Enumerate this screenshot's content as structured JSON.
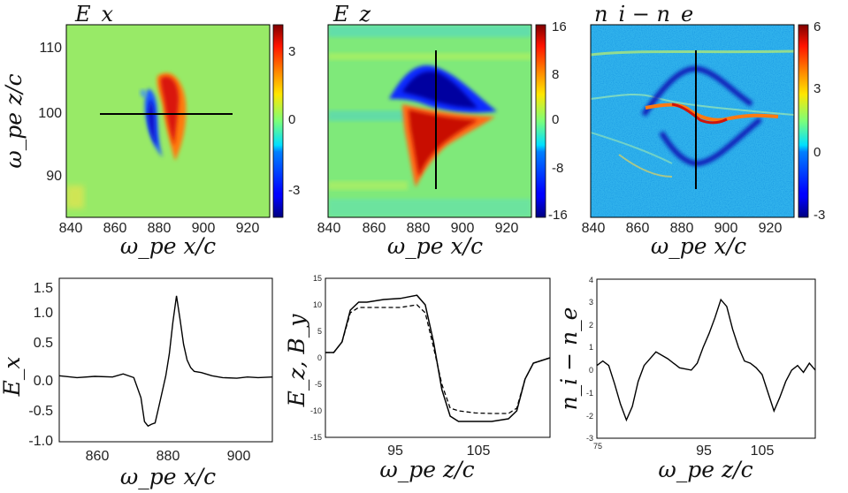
{
  "chart_data": [
    {
      "type": "heatmap",
      "title": "E_x",
      "xlabel": "ω_pe x/c",
      "ylabel": "ω_pe z/c",
      "xlim": [
        840,
        932
      ],
      "ylim": [
        84,
        113
      ],
      "xticks": [
        840,
        860,
        880,
        900,
        920
      ],
      "yticks": [
        90,
        100,
        110
      ],
      "colorbar": {
        "range": [
          -4,
          4
        ],
        "ticks": [
          3,
          0,
          -3
        ]
      },
      "line": {
        "orientation": "horizontal",
        "z": 99.5,
        "x_from": 856,
        "x_to": 916
      },
      "features": [
        {
          "name": "positive lobe",
          "x": 886,
          "z": 99.5,
          "value": 3.5
        },
        {
          "name": "negative lobe",
          "x": 876,
          "z": 98.0,
          "value": -3.5
        }
      ]
    },
    {
      "type": "heatmap",
      "title": "E_z",
      "xlabel": "ω_pe x/c",
      "ylabel": "",
      "xlim": [
        840,
        932
      ],
      "ylim": [
        84,
        113
      ],
      "xticks": [
        840,
        860,
        880,
        900,
        920
      ],
      "colorbar": {
        "range": [
          -16,
          16
        ],
        "ticks": [
          16,
          8,
          0,
          -8,
          -16
        ]
      },
      "line": {
        "orientation": "vertical",
        "x": 888,
        "z_from": 88,
        "z_to": 109
      },
      "features": [
        {
          "name": "negative lobe",
          "x": 893,
          "z": 103,
          "value": -15
        },
        {
          "name": "positive lobe",
          "x": 893,
          "z": 95,
          "value": 14
        }
      ]
    },
    {
      "type": "heatmap",
      "title": "n_i − n_e",
      "xlabel": "ω_pe x/c",
      "ylabel": "",
      "xlim": [
        840,
        932
      ],
      "ylim": [
        84,
        113
      ],
      "xticks": [
        840,
        860,
        880,
        900,
        920
      ],
      "colorbar": {
        "range": [
          -3,
          6
        ],
        "ticks": [
          6,
          3,
          0,
          -3
        ]
      },
      "line": {
        "orientation": "vertical",
        "x": 888,
        "z_from": 88,
        "z_to": 109
      },
      "features": [
        {
          "name": "density spike",
          "x": 895,
          "z": 99,
          "value": 5
        },
        {
          "name": "depletion ring",
          "x": 880,
          "z": 104,
          "value": -3
        }
      ]
    },
    {
      "type": "line",
      "xlabel": "ω_pe x/c",
      "ylabel": "E_x",
      "xlim": [
        850,
        910
      ],
      "ylim": [
        -1.0,
        1.6
      ],
      "xticks": [
        860,
        880,
        900
      ],
      "yticks": [
        "1.5",
        "1.0",
        "0.5",
        "0.0",
        "-0.5",
        "-1.0"
      ],
      "series": [
        {
          "name": "E_x",
          "style": "solid",
          "x": [
            850,
            855,
            860,
            865,
            868,
            871,
            873,
            874,
            875,
            876,
            877,
            878,
            879,
            880,
            881,
            882,
            883,
            884,
            885,
            886,
            887,
            888,
            890,
            893,
            896,
            900,
            903,
            906,
            910
          ],
          "y": [
            0.05,
            0.02,
            0.04,
            0.03,
            0.08,
            0.02,
            -0.3,
            -0.68,
            -0.75,
            -0.72,
            -0.7,
            -0.45,
            -0.2,
            0.05,
            0.4,
            0.9,
            1.32,
            0.95,
            0.55,
            0.3,
            0.18,
            0.12,
            0.1,
            0.05,
            0.02,
            0.01,
            0.03,
            0.02,
            0.03
          ]
        }
      ]
    },
    {
      "type": "line",
      "xlabel": "ω_pe z/c",
      "ylabel": "E_z, B_y",
      "xlim": [
        86,
        113
      ],
      "ylim": [
        -15,
        15
      ],
      "xticks": [
        95,
        105
      ],
      "yticks": [
        "15",
        "10",
        "5",
        "0",
        "-5",
        "-10",
        "-15"
      ],
      "series": [
        {
          "name": "E_z",
          "style": "solid",
          "x": [
            86,
            87,
            88,
            89,
            90,
            91,
            93,
            95,
            97,
            98,
            99,
            100,
            101,
            102,
            103,
            104,
            106,
            108,
            109,
            110,
            111,
            112,
            113
          ],
          "y": [
            1,
            1,
            3,
            9,
            10.5,
            10.5,
            11,
            11.2,
            11.8,
            10,
            3,
            -6,
            -11,
            -12,
            -12,
            -12,
            -12,
            -11.5,
            -10,
            -4,
            -1,
            -0.5,
            0
          ]
        },
        {
          "name": "B_y",
          "style": "dashed",
          "x": [
            86,
            87,
            88,
            89,
            90,
            91,
            93,
            95,
            97,
            98,
            99,
            100,
            101,
            102,
            103,
            104,
            106,
            108,
            109,
            110,
            111,
            112,
            113
          ],
          "y": [
            1,
            1,
            3,
            8.5,
            9.5,
            9.5,
            9.5,
            9.5,
            10,
            8.5,
            2,
            -5,
            -9.5,
            -10,
            -10.2,
            -10.4,
            -10.5,
            -10.5,
            -9.5,
            -4,
            -1,
            -0.5,
            0
          ]
        }
      ]
    },
    {
      "type": "line",
      "xlabel": "ω_pe z/c",
      "ylabel": "n_i − n_e",
      "xlim": [
        75,
        112
      ],
      "ylim": [
        -3,
        4
      ],
      "xticks": [
        75,
        95,
        105
      ],
      "yticks": [
        "4",
        "3",
        "2",
        "1",
        "0",
        "-1",
        "-2",
        "-3"
      ],
      "series": [
        {
          "name": "n_i − n_e",
          "style": "solid",
          "x": [
            75,
            76,
            77,
            78,
            79,
            80,
            81,
            82,
            83,
            85,
            87,
            89,
            91,
            92,
            93,
            94,
            95,
            96,
            97,
            98,
            99,
            100,
            101,
            102,
            103,
            104,
            105,
            106,
            107,
            108,
            109,
            110,
            111,
            112
          ],
          "y": [
            0.2,
            0.4,
            0.2,
            -0.6,
            -1.5,
            -2.2,
            -1.6,
            -0.5,
            0.2,
            0.8,
            0.5,
            0.1,
            0.0,
            0.3,
            1.0,
            1.6,
            2.3,
            3.1,
            2.8,
            1.8,
            1.0,
            0.4,
            0.3,
            0.1,
            -0.2,
            -1.0,
            -1.8,
            -1.2,
            -0.5,
            0.0,
            0.2,
            -0.1,
            0.3,
            0.0
          ]
        }
      ]
    }
  ]
}
